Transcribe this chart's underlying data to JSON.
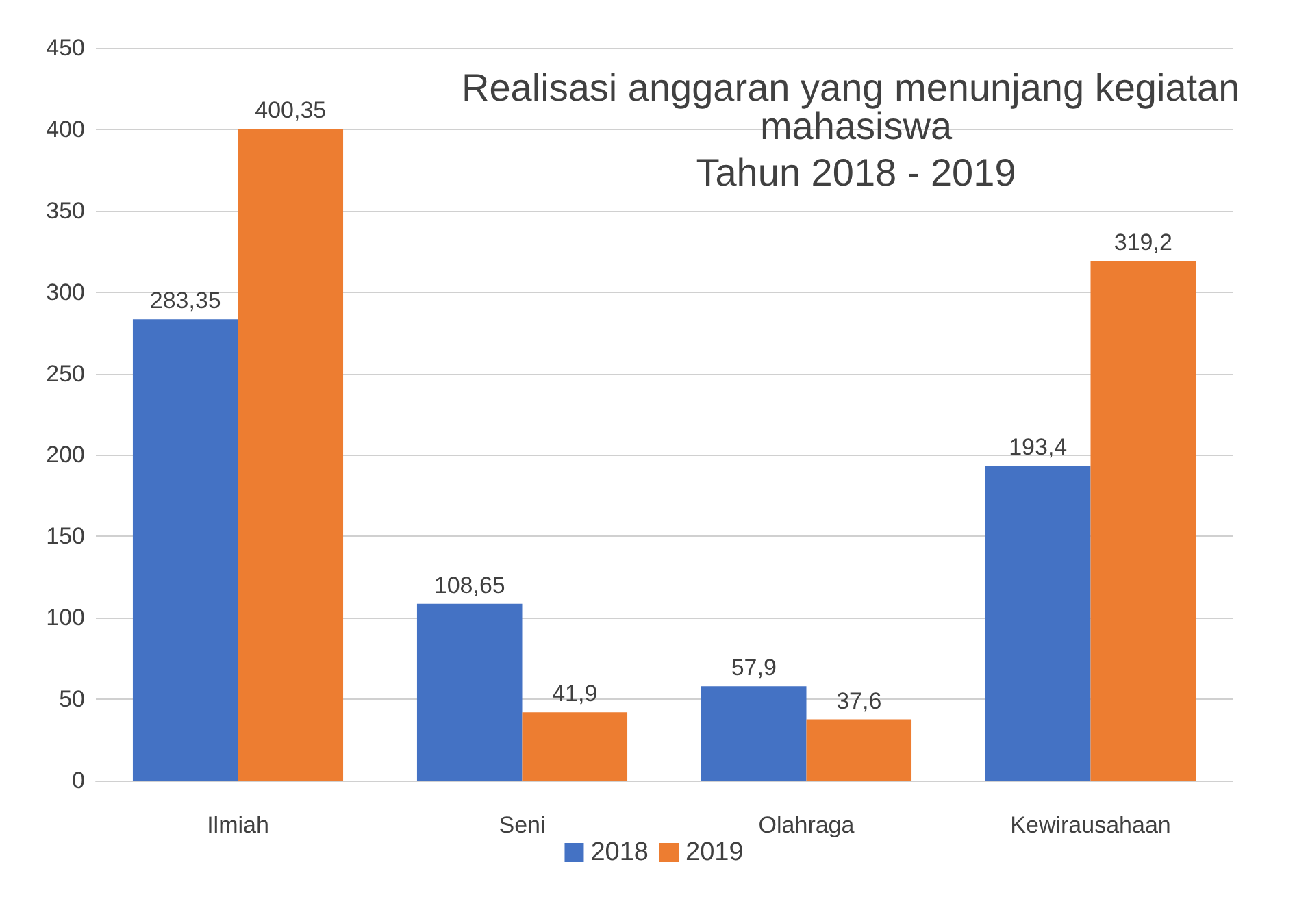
{
  "chart_data": {
    "type": "bar",
    "title": "Realisasi anggaran yang menunjang kegiatan mahasiswa",
    "subtitle": "Tahun 2018 - 2019",
    "categories": [
      "Ilmiah",
      "Seni",
      "Olahraga",
      "Kewirausahaan"
    ],
    "series": [
      {
        "name": "2018",
        "color": "#4472c4",
        "values": [
          283.35,
          108.65,
          57.9,
          193.4
        ],
        "value_labels": [
          "283,35",
          "108,65",
          "57,9",
          "193,4"
        ]
      },
      {
        "name": "2019",
        "color": "#ed7d31",
        "values": [
          400.35,
          41.9,
          37.6,
          319.2
        ],
        "value_labels": [
          "400,35",
          "41,9",
          "37,6",
          "319,2"
        ]
      }
    ],
    "ylim": [
      0,
      450
    ],
    "yticks": [
      0,
      50,
      100,
      150,
      200,
      250,
      300,
      350,
      400,
      450
    ],
    "grid": "y",
    "legend": "bottom"
  }
}
